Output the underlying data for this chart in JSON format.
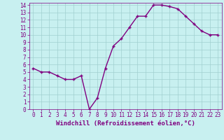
{
  "x": [
    0,
    1,
    2,
    3,
    4,
    5,
    6,
    7,
    8,
    9,
    10,
    11,
    12,
    13,
    14,
    15,
    16,
    17,
    18,
    19,
    20,
    21,
    22,
    23
  ],
  "y": [
    5.5,
    5.0,
    5.0,
    4.5,
    4.0,
    4.0,
    4.5,
    0.0,
    1.5,
    5.5,
    8.5,
    9.5,
    11.0,
    12.5,
    12.5,
    14.0,
    14.0,
    13.8,
    13.5,
    12.5,
    11.5,
    10.5,
    10.0,
    10.0
  ],
  "line_color": "#800080",
  "marker": "+",
  "marker_color": "#800080",
  "bg_color": "#c8f0f0",
  "grid_color": "#a0d0d0",
  "xlabel": "Windchill (Refroidissement éolien,°C)",
  "xlabel_color": "#800080",
  "tick_color": "#800080",
  "ylim": [
    0,
    14
  ],
  "xlim": [
    -0.5,
    23.5
  ],
  "yticks": [
    0,
    1,
    2,
    3,
    4,
    5,
    6,
    7,
    8,
    9,
    10,
    11,
    12,
    13,
    14
  ],
  "xticks": [
    0,
    1,
    2,
    3,
    4,
    5,
    6,
    7,
    8,
    9,
    10,
    11,
    12,
    13,
    14,
    15,
    16,
    17,
    18,
    19,
    20,
    21,
    22,
    23
  ],
  "tick_fontsize": 5.5,
  "xlabel_fontsize": 6.5,
  "linewidth": 1.0,
  "markersize": 3.5
}
